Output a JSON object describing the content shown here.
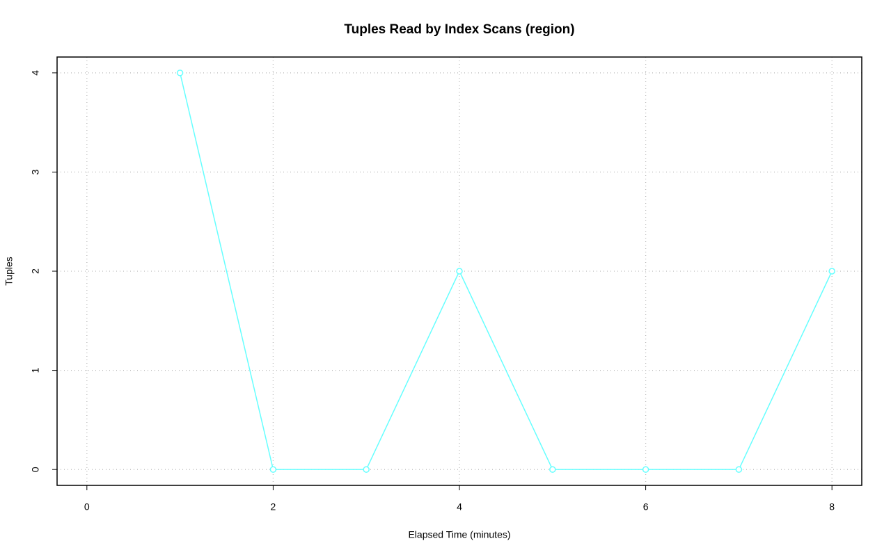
{
  "chart_data": {
    "type": "line",
    "title": "Tuples Read by Index Scans (region)",
    "x_label": "Elapsed Time (minutes)",
    "y_label": "Tuples",
    "x": [
      1,
      2,
      3,
      4,
      5,
      6,
      7,
      8
    ],
    "series": [
      {
        "name": "region",
        "color": "#66ffff",
        "values": [
          4,
          0,
          0,
          2,
          0,
          0,
          0,
          2
        ]
      }
    ],
    "xlim": [
      -0.32,
      8.32
    ],
    "xticks": [
      0,
      2,
      4,
      6,
      8
    ],
    "ylim": [
      -0.16,
      4.16
    ],
    "yticks": [
      0,
      1,
      2,
      3,
      4
    ],
    "grid": true
  }
}
